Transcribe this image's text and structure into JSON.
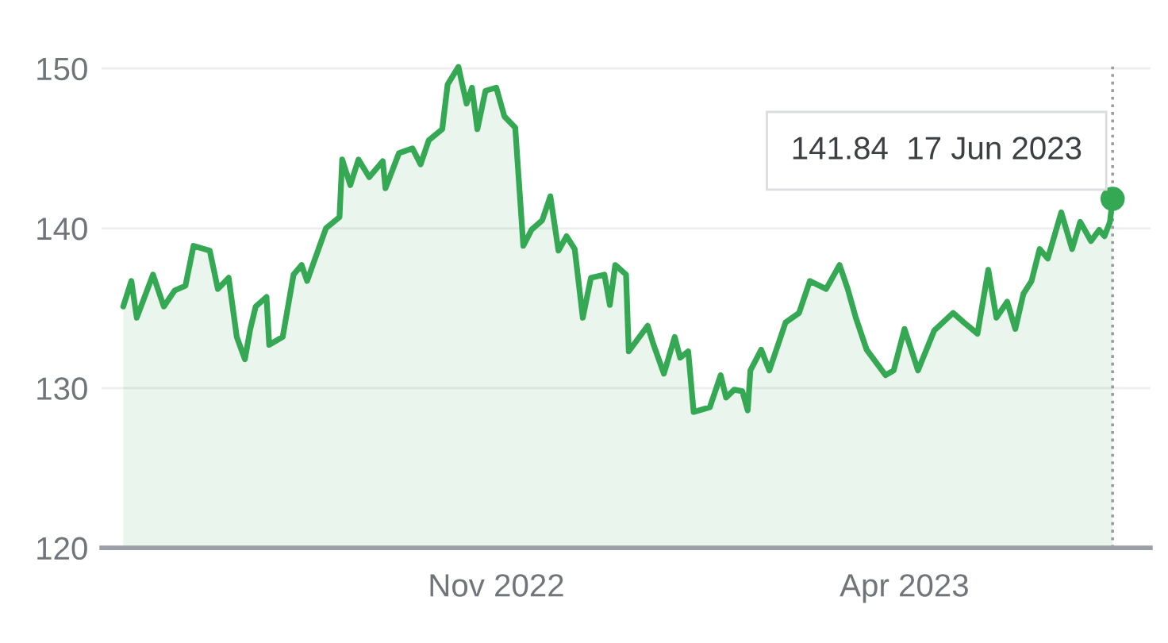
{
  "chart_data": {
    "type": "area",
    "x": [
      "2022-06-16",
      "2022-06-19",
      "2022-06-21",
      "2022-06-27",
      "2022-07-01",
      "2022-07-05",
      "2022-07-09",
      "2022-07-12",
      "2022-07-18",
      "2022-07-21",
      "2022-07-25",
      "2022-07-28",
      "2022-07-31",
      "2022-08-02",
      "2022-08-04",
      "2022-08-08",
      "2022-08-09",
      "2022-08-14",
      "2022-08-18",
      "2022-08-21",
      "2022-08-23",
      "2022-08-30",
      "2022-09-04",
      "2022-09-05",
      "2022-09-08",
      "2022-09-11",
      "2022-09-15",
      "2022-09-20",
      "2022-09-21",
      "2022-09-26",
      "2022-10-01",
      "2022-10-04",
      "2022-10-07",
      "2022-10-12",
      "2022-10-14",
      "2022-10-18",
      "2022-10-21",
      "2022-10-23",
      "2022-10-25",
      "2022-10-28",
      "2022-11-01",
      "2022-11-04",
      "2022-11-08",
      "2022-11-11",
      "2022-11-14",
      "2022-11-18",
      "2022-11-21",
      "2022-11-24",
      "2022-11-27",
      "2022-11-30",
      "2022-12-03",
      "2022-12-06",
      "2022-12-11",
      "2022-12-13",
      "2022-12-15",
      "2022-12-19",
      "2022-12-20",
      "2022-12-27",
      "2022-12-29",
      "2023-01-02",
      "2023-01-06",
      "2023-01-08",
      "2023-01-11",
      "2023-01-13",
      "2023-01-19",
      "2023-01-23",
      "2023-01-25",
      "2023-01-28",
      "2023-01-31",
      "2023-02-02",
      "2023-02-03",
      "2023-02-07",
      "2023-02-10",
      "2023-02-16",
      "2023-02-21",
      "2023-02-25",
      "2023-03-03",
      "2023-03-08",
      "2023-03-11",
      "2023-03-14",
      "2023-03-18",
      "2023-03-25",
      "2023-03-28",
      "2023-04-01",
      "2023-04-06",
      "2023-04-12",
      "2023-04-19",
      "2023-04-23",
      "2023-04-28",
      "2023-05-02",
      "2023-05-05",
      "2023-05-09",
      "2023-05-12",
      "2023-05-15",
      "2023-05-18",
      "2023-05-21",
      "2023-05-24",
      "2023-05-29",
      "2023-06-02",
      "2023-06-05",
      "2023-06-09",
      "2023-06-12",
      "2023-06-14",
      "2023-06-16",
      "2023-06-17"
    ],
    "series": [
      {
        "color": "#34a853",
        "values": [
          135.1,
          136.7,
          134.4,
          137.1,
          135.1,
          136.1,
          136.4,
          138.9,
          138.6,
          136.2,
          136.9,
          133.2,
          131.8,
          133.7,
          135.1,
          135.7,
          132.7,
          133.2,
          137.1,
          137.7,
          136.7,
          140.0,
          140.7,
          144.3,
          142.7,
          144.3,
          143.2,
          144.2,
          142.5,
          144.7,
          145.0,
          144.0,
          145.5,
          146.2,
          149.0,
          150.1,
          147.8,
          148.8,
          146.2,
          148.6,
          148.8,
          147.0,
          146.3,
          138.9,
          139.9,
          140.5,
          142.0,
          138.6,
          139.5,
          138.7,
          134.4,
          136.9,
          137.1,
          135.2,
          137.7,
          137.1,
          132.3,
          133.9,
          132.8,
          130.9,
          133.2,
          131.9,
          132.3,
          128.5,
          128.8,
          130.8,
          129.4,
          129.9,
          129.8,
          128.6,
          131.1,
          132.4,
          131.1,
          134.1,
          134.7,
          136.7,
          136.2,
          137.7,
          136.2,
          134.4,
          132.4,
          130.8,
          131.1,
          133.7,
          131.1,
          133.6,
          134.7,
          134.1,
          133.4,
          137.4,
          134.4,
          135.4,
          133.7,
          135.9,
          136.7,
          138.7,
          138.1,
          141.0,
          138.7,
          140.4,
          139.2,
          139.9,
          139.5,
          140.4,
          141.84
        ]
      }
    ],
    "xlim": [
      "2022-06-08",
      "2023-07-01"
    ],
    "xticks": [
      {
        "value": "2022-11-01",
        "label": "Nov 2022"
      },
      {
        "value": "2023-04-01",
        "label": "Apr 2023"
      }
    ],
    "ylim": [
      120,
      150.3
    ],
    "yticks": [
      120,
      130,
      140,
      150
    ],
    "grid": "y",
    "ref_lines": [
      {
        "axis": "x",
        "value": "2023-06-17",
        "line_style": "dotted",
        "color": "#9e9e9e"
      }
    ],
    "annotations": [
      "141.84  17 Jun 2023"
    ]
  }
}
